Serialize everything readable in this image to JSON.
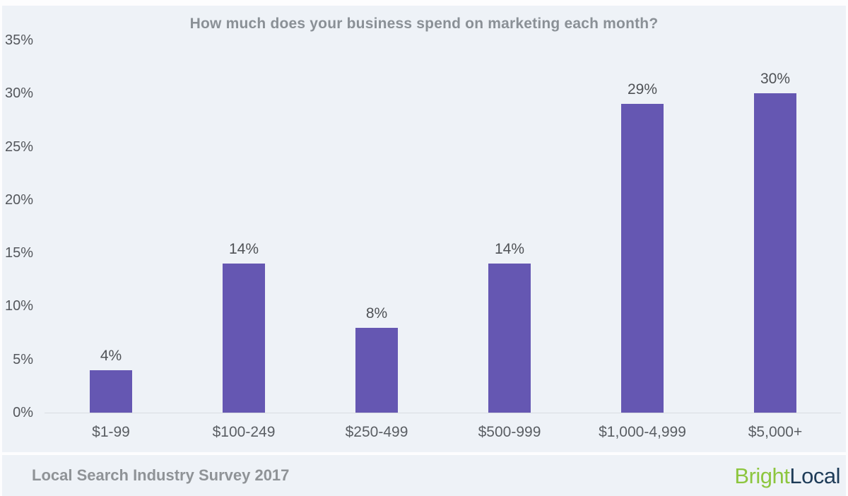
{
  "chart_data": {
    "type": "bar",
    "title": "How much does your business spend on marketing each month?",
    "categories": [
      "$1-99",
      "$100-249",
      "$250-499",
      "$500-999",
      "$1,000-4,999",
      "$5,000+"
    ],
    "values": [
      4,
      14,
      8,
      14,
      29,
      30
    ],
    "value_labels": [
      "4%",
      "14%",
      "8%",
      "14%",
      "29%",
      "30%"
    ],
    "xlabel": "",
    "ylabel": "",
    "ylim": [
      0,
      35
    ],
    "ytick_step": 5,
    "yticks": [
      "0%",
      "5%",
      "10%",
      "15%",
      "20%",
      "25%",
      "30%",
      "35%"
    ],
    "grid": false,
    "legend": null,
    "bar_color": "#6557b2"
  },
  "footer": {
    "source": "Local Search Industry Survey 2017",
    "brand_first": "Bright",
    "brand_second": "Local"
  },
  "colors": {
    "background": "#eef2f7",
    "page_gap": "#fdfdfe",
    "bar": "#6557b2",
    "axis_line": "#d8dce1",
    "title_text": "#8a9096",
    "tick_text": "#54575c",
    "value_text": "#4f5256",
    "footer_text": "#8f9397",
    "brand_green": "#8dc63f",
    "brand_navy": "#1e3c58"
  }
}
